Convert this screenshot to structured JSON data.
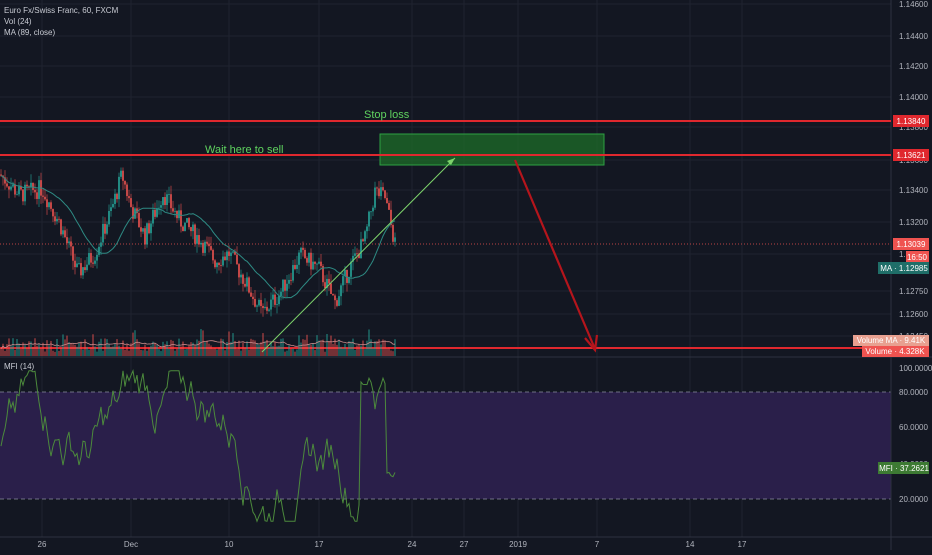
{
  "legend": {
    "symbol": "Euro Fx/Swiss Franc, 60, FXCM",
    "volume": "Vol (24)",
    "ma": "MA (89, close)"
  },
  "annotations": {
    "stop_loss": "Stop loss",
    "wait_sell": "Wait here to sell"
  },
  "price_axis": {
    "ticks": [
      "1.14600",
      "1.14400",
      "1.14200",
      "1.14000",
      "1.13800",
      "1.13600",
      "1.13400",
      "1.13200",
      "1.13000",
      "1.12750",
      "1.12600",
      "1.12450"
    ],
    "label_100": "100.0000"
  },
  "mfi_axis": {
    "ticks": [
      "80.0000",
      "60.0000",
      "40.0000",
      "20.0000"
    ]
  },
  "badges": {
    "stop_level": "1.13840",
    "sell_level": "1.13621",
    "last_price": "1.13039",
    "countdown": "16:50",
    "ma_value": "MA · 1.12985",
    "volume_ma": "Volume MA · 9.41K",
    "volume": "Volume · 4.328K",
    "mfi_value": "MFI · 37.2621"
  },
  "mfi": {
    "title": "MFI (14)"
  },
  "time_axis": {
    "ticks": [
      "26",
      "Dec",
      "10",
      "17",
      "24",
      "27",
      "2019",
      "7",
      "14",
      "17"
    ]
  },
  "colors": {
    "background": "#131722",
    "up": "#26a69a",
    "down": "#ef5350",
    "level_line": "#e0282e",
    "ma_line": "#2e8b84",
    "trend_line": "#7dd36b",
    "projection": "#b5151c",
    "sell_zone": "#1e6b2a",
    "mfi_band": "#2a1f4a",
    "mfi_line": "#4c8a3c",
    "annotation_text": "#5fd35f"
  },
  "chart_data": [
    {
      "type": "candlestick",
      "title": "Euro Fx/Swiss Franc, 60, FXCM",
      "instrument": "EUR/CHF",
      "interval": "60",
      "ylim": [
        1.1239,
        1.1465
      ],
      "price_levels": {
        "stop_loss": 1.1384,
        "sell_entry": 1.13621,
        "last": 1.13039,
        "ma_89": 1.12985
      },
      "sell_zone": {
        "low": 1.1359,
        "high": 1.1377
      },
      "trend_line_start": 1.1239,
      "trend_line_end": 1.1362,
      "projection_target": 1.1242,
      "anchor_points": [
        {
          "x": "26",
          "y": 1.1343
        },
        {
          "x": "Dec",
          "y": 1.1331
        },
        {
          "x": "10",
          "y": 1.1301
        },
        {
          "x": "17",
          "y": 1.1291
        },
        {
          "x": "21",
          "y": 1.1341
        },
        {
          "x": "22",
          "y": 1.1304
        }
      ]
    },
    {
      "type": "line",
      "title": "MFI (14)",
      "ylim": [
        0,
        100
      ],
      "bands": [
        20,
        80
      ],
      "last_value": 37.2621
    }
  ]
}
